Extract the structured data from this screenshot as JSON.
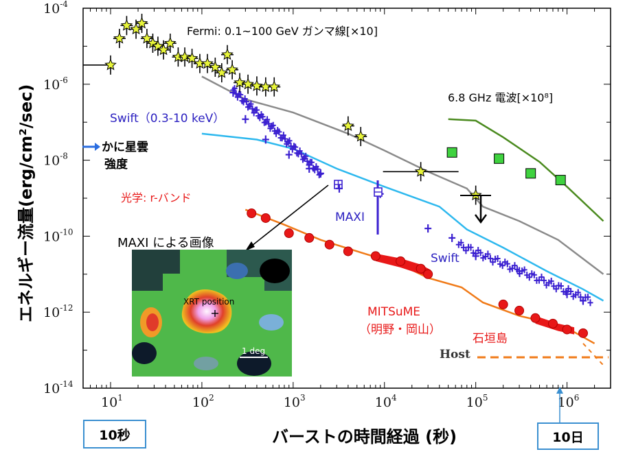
{
  "chart_data": {
    "type": "scatter",
    "xscale": "log",
    "yscale": "log",
    "xlim": [
      5,
      3000000
    ],
    "ylim": [
      1e-14,
      0.0001
    ],
    "xlabel": "バーストの時間経過 (秒)",
    "ylabel": "エネルギー流量(erg/cm²/sec)",
    "x_ticks": [
      {
        "base": "10",
        "exp": "1"
      },
      {
        "base": "10",
        "exp": "2"
      },
      {
        "base": "10",
        "exp": "3"
      },
      {
        "base": "10",
        "exp": "4"
      },
      {
        "base": "10",
        "exp": "5"
      },
      {
        "base": "10",
        "exp": "6"
      }
    ],
    "y_ticks": [
      {
        "base": "10",
        "exp": "-4"
      },
      {
        "base": "10",
        "exp": "-6"
      },
      {
        "base": "10",
        "exp": "-8"
      },
      {
        "base": "10",
        "exp": "-10"
      },
      {
        "base": "10",
        "exp": "-12"
      },
      {
        "base": "10",
        "exp": "-14"
      }
    ],
    "annotations": {
      "fermi": "Fermi: 0.1~100 GeV ガンマ線[×10]",
      "radio": "6.8 GHz 電波[×10⁸]",
      "swift_xrt": "Swift（0.3-10 keV）",
      "crab_1": "かに星雲",
      "crab_2": "強度",
      "optical": "光学: r-バンド",
      "maxi": "MAXI",
      "maxi_image": "MAXI による画像",
      "swift_late": "Swift",
      "mitsume_1": "MITSuME",
      "mitsume_2": "（明野・岡山）",
      "ishigaki": "石垣島",
      "host": "Host",
      "xrt_position": "XRT position",
      "scale_bar": "1 deg"
    },
    "time_boxes": [
      "10秒",
      "10日"
    ],
    "colors": {
      "fermi": "#e8f53a",
      "swift": "#3a1fd0",
      "swift_model": "#2db8ee",
      "gray_model": "#8a8a8a",
      "optical": "#e81818",
      "optical_model": "#f07a18",
      "radio": "#3fd23f",
      "radio_model": "#4a8a1e"
    },
    "series": [
      {
        "name": "Fermi",
        "points": [
          [
            10,
            3.2e-06
          ],
          [
            12.5,
            1.6e-05
          ],
          [
            15,
            3.5e-05
          ],
          [
            19,
            2.8e-05
          ],
          [
            22,
            4e-05
          ],
          [
            25,
            1.6e-05
          ],
          [
            29,
            1.2e-05
          ],
          [
            33,
            1e-05
          ],
          [
            38,
            8e-06
          ],
          [
            45,
            1.2e-05
          ],
          [
            55,
            5.2e-06
          ],
          [
            65,
            5.2e-06
          ],
          [
            78,
            4.8e-06
          ],
          [
            95,
            3.5e-06
          ],
          [
            115,
            3.5e-06
          ],
          [
            140,
            2.8e-06
          ],
          [
            165,
            2e-06
          ],
          [
            190,
            6e-06
          ],
          [
            215,
            2.4e-06
          ],
          [
            260,
            1.1e-06
          ],
          [
            320,
            1e-06
          ],
          [
            400,
            9e-07
          ],
          [
            500,
            8.5e-07
          ],
          [
            620,
            8.5e-07
          ],
          [
            4000,
            8e-08
          ],
          [
            5500,
            4.2e-08
          ],
          [
            25000,
            5e-09
          ],
          [
            100000,
            1.2e-09
          ]
        ]
      },
      {
        "name": "Swift",
        "points": [
          [
            220,
            6e-07
          ],
          [
            300,
            1.2e-07
          ],
          [
            500,
            3.5e-08
          ],
          [
            900,
            1.4e-08
          ],
          [
            1500,
            6e-09
          ],
          [
            2000,
            4.5e-09
          ],
          [
            3200,
            1.8e-09
          ],
          [
            9000,
            1.3e-09
          ],
          [
            30000,
            1.6e-10
          ],
          [
            55000,
            9e-11
          ],
          [
            100000,
            3e-11
          ],
          [
            300000,
            1.2e-11
          ],
          [
            1000000,
            3e-12
          ],
          [
            1500000,
            2e-12
          ]
        ]
      },
      {
        "name": "光学: r-バンド",
        "points": [
          [
            350,
            4e-10
          ],
          [
            500,
            3e-10
          ],
          [
            900,
            1.2e-10
          ],
          [
            1500,
            9e-11
          ],
          [
            2500,
            6e-11
          ],
          [
            4000,
            4e-11
          ],
          [
            8000,
            3e-11
          ],
          [
            15000,
            2.2e-11
          ],
          [
            25000,
            1.4e-11
          ],
          [
            30000,
            1e-11
          ],
          [
            200000,
            1.6e-12
          ],
          [
            300000,
            1.1e-12
          ],
          [
            450000,
            7e-13
          ],
          [
            700000,
            5e-13
          ],
          [
            1000000,
            3.5e-13
          ],
          [
            1500000,
            2.8e-13
          ]
        ]
      },
      {
        "name": "6.8 GHz 電波",
        "points": [
          [
            55000,
            1.6e-08
          ],
          [
            180000,
            1.1e-08
          ],
          [
            400000,
            4.5e-09
          ],
          [
            850000,
            3e-09
          ]
        ]
      }
    ]
  }
}
